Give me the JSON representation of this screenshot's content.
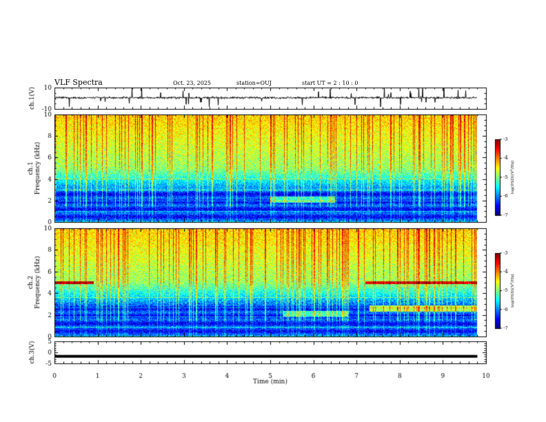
{
  "header": {
    "title": "VLF Spectra",
    "date": "Oct. 23, 2025",
    "station": "station=OUJ",
    "start": "start UT =  2 : 10 : 0"
  },
  "chart_data": [
    {
      "type": "line",
      "panel": "ch1-waveform",
      "ylabel": "ch.1(V)",
      "ylim": [
        -10,
        10
      ],
      "yticks": [
        10,
        -10
      ],
      "xlim": [
        0,
        10
      ],
      "description_values": {
        "baseline_V": 0.5,
        "typical_noise_V": 2,
        "max_spike_V": 10
      },
      "color": "#000000"
    },
    {
      "type": "heatmap",
      "panel": "ch1-spectrogram",
      "ylabel": "ch.1\nFrequency (kHz)",
      "ylim": [
        0,
        10
      ],
      "yticks": [
        0,
        2,
        4,
        6,
        8,
        10
      ],
      "xlim": [
        0,
        9.8
      ],
      "colorbar": {
        "label": "log(PSD)(V²/Hz)",
        "range": [
          -7,
          -3
        ],
        "ticks": [
          -3,
          -4,
          -5,
          -6,
          -7
        ]
      },
      "features": [
        {
          "kind": "quiet_band",
          "freq_kHz": [
            0,
            3
          ],
          "log_psd": -6.3
        },
        {
          "kind": "noise_band",
          "freq_kHz": [
            3,
            5
          ],
          "log_psd": -5.0
        },
        {
          "kind": "sferics_band",
          "freq_kHz": [
            5,
            10
          ],
          "log_psd": -3.8
        },
        {
          "kind": "emission",
          "t_min": [
            5.0,
            6.5
          ],
          "freq_kHz": [
            1.8,
            2.4
          ],
          "log_psd": -5.3
        }
      ]
    },
    {
      "type": "heatmap",
      "panel": "ch2-spectrogram",
      "ylabel": "ch.2\nFrequency (kHz)",
      "ylim": [
        0,
        10
      ],
      "yticks": [
        0,
        2,
        4,
        6,
        8,
        10
      ],
      "xlim": [
        0,
        9.8
      ],
      "colorbar": {
        "label": "log(PSD)(V²/Hz)",
        "range": [
          -7,
          -3
        ],
        "ticks": [
          -3,
          -4,
          -5,
          -6,
          -7
        ]
      },
      "features": [
        {
          "kind": "quiet_band",
          "freq_kHz": [
            0,
            3
          ],
          "log_psd": -6.1
        },
        {
          "kind": "noise_band",
          "freq_kHz": [
            3,
            5
          ],
          "log_psd": -5.0
        },
        {
          "kind": "sferics_band",
          "freq_kHz": [
            5,
            10
          ],
          "log_psd": -3.8
        },
        {
          "kind": "emission_line",
          "t_min": [
            0,
            0.9
          ],
          "freq_kHz": [
            4.9,
            5.1
          ],
          "log_psd": -3.3
        },
        {
          "kind": "emission_line",
          "t_min": [
            7.2,
            9.8
          ],
          "freq_kHz": [
            4.9,
            5.1
          ],
          "log_psd": -3.4
        },
        {
          "kind": "emission",
          "t_min": [
            5.3,
            6.8
          ],
          "freq_kHz": [
            1.9,
            2.4
          ],
          "log_psd": -5.3
        },
        {
          "kind": "emission",
          "t_min": [
            7.3,
            9.8
          ],
          "freq_kHz": [
            2.3,
            2.9
          ],
          "log_psd": -4.8
        }
      ]
    },
    {
      "type": "line",
      "panel": "ch3-waveform",
      "ylabel": "ch.3(V)",
      "ylim": [
        -5,
        5
      ],
      "yticks": [
        5,
        0,
        -5
      ],
      "xlim": [
        0,
        10
      ],
      "xlabel": "Time (min)",
      "xticks": [
        0,
        1,
        2,
        3,
        4,
        5,
        6,
        7,
        8,
        9,
        10
      ],
      "description_values": {
        "constant_V": -1.8
      },
      "color": "#000000"
    }
  ]
}
